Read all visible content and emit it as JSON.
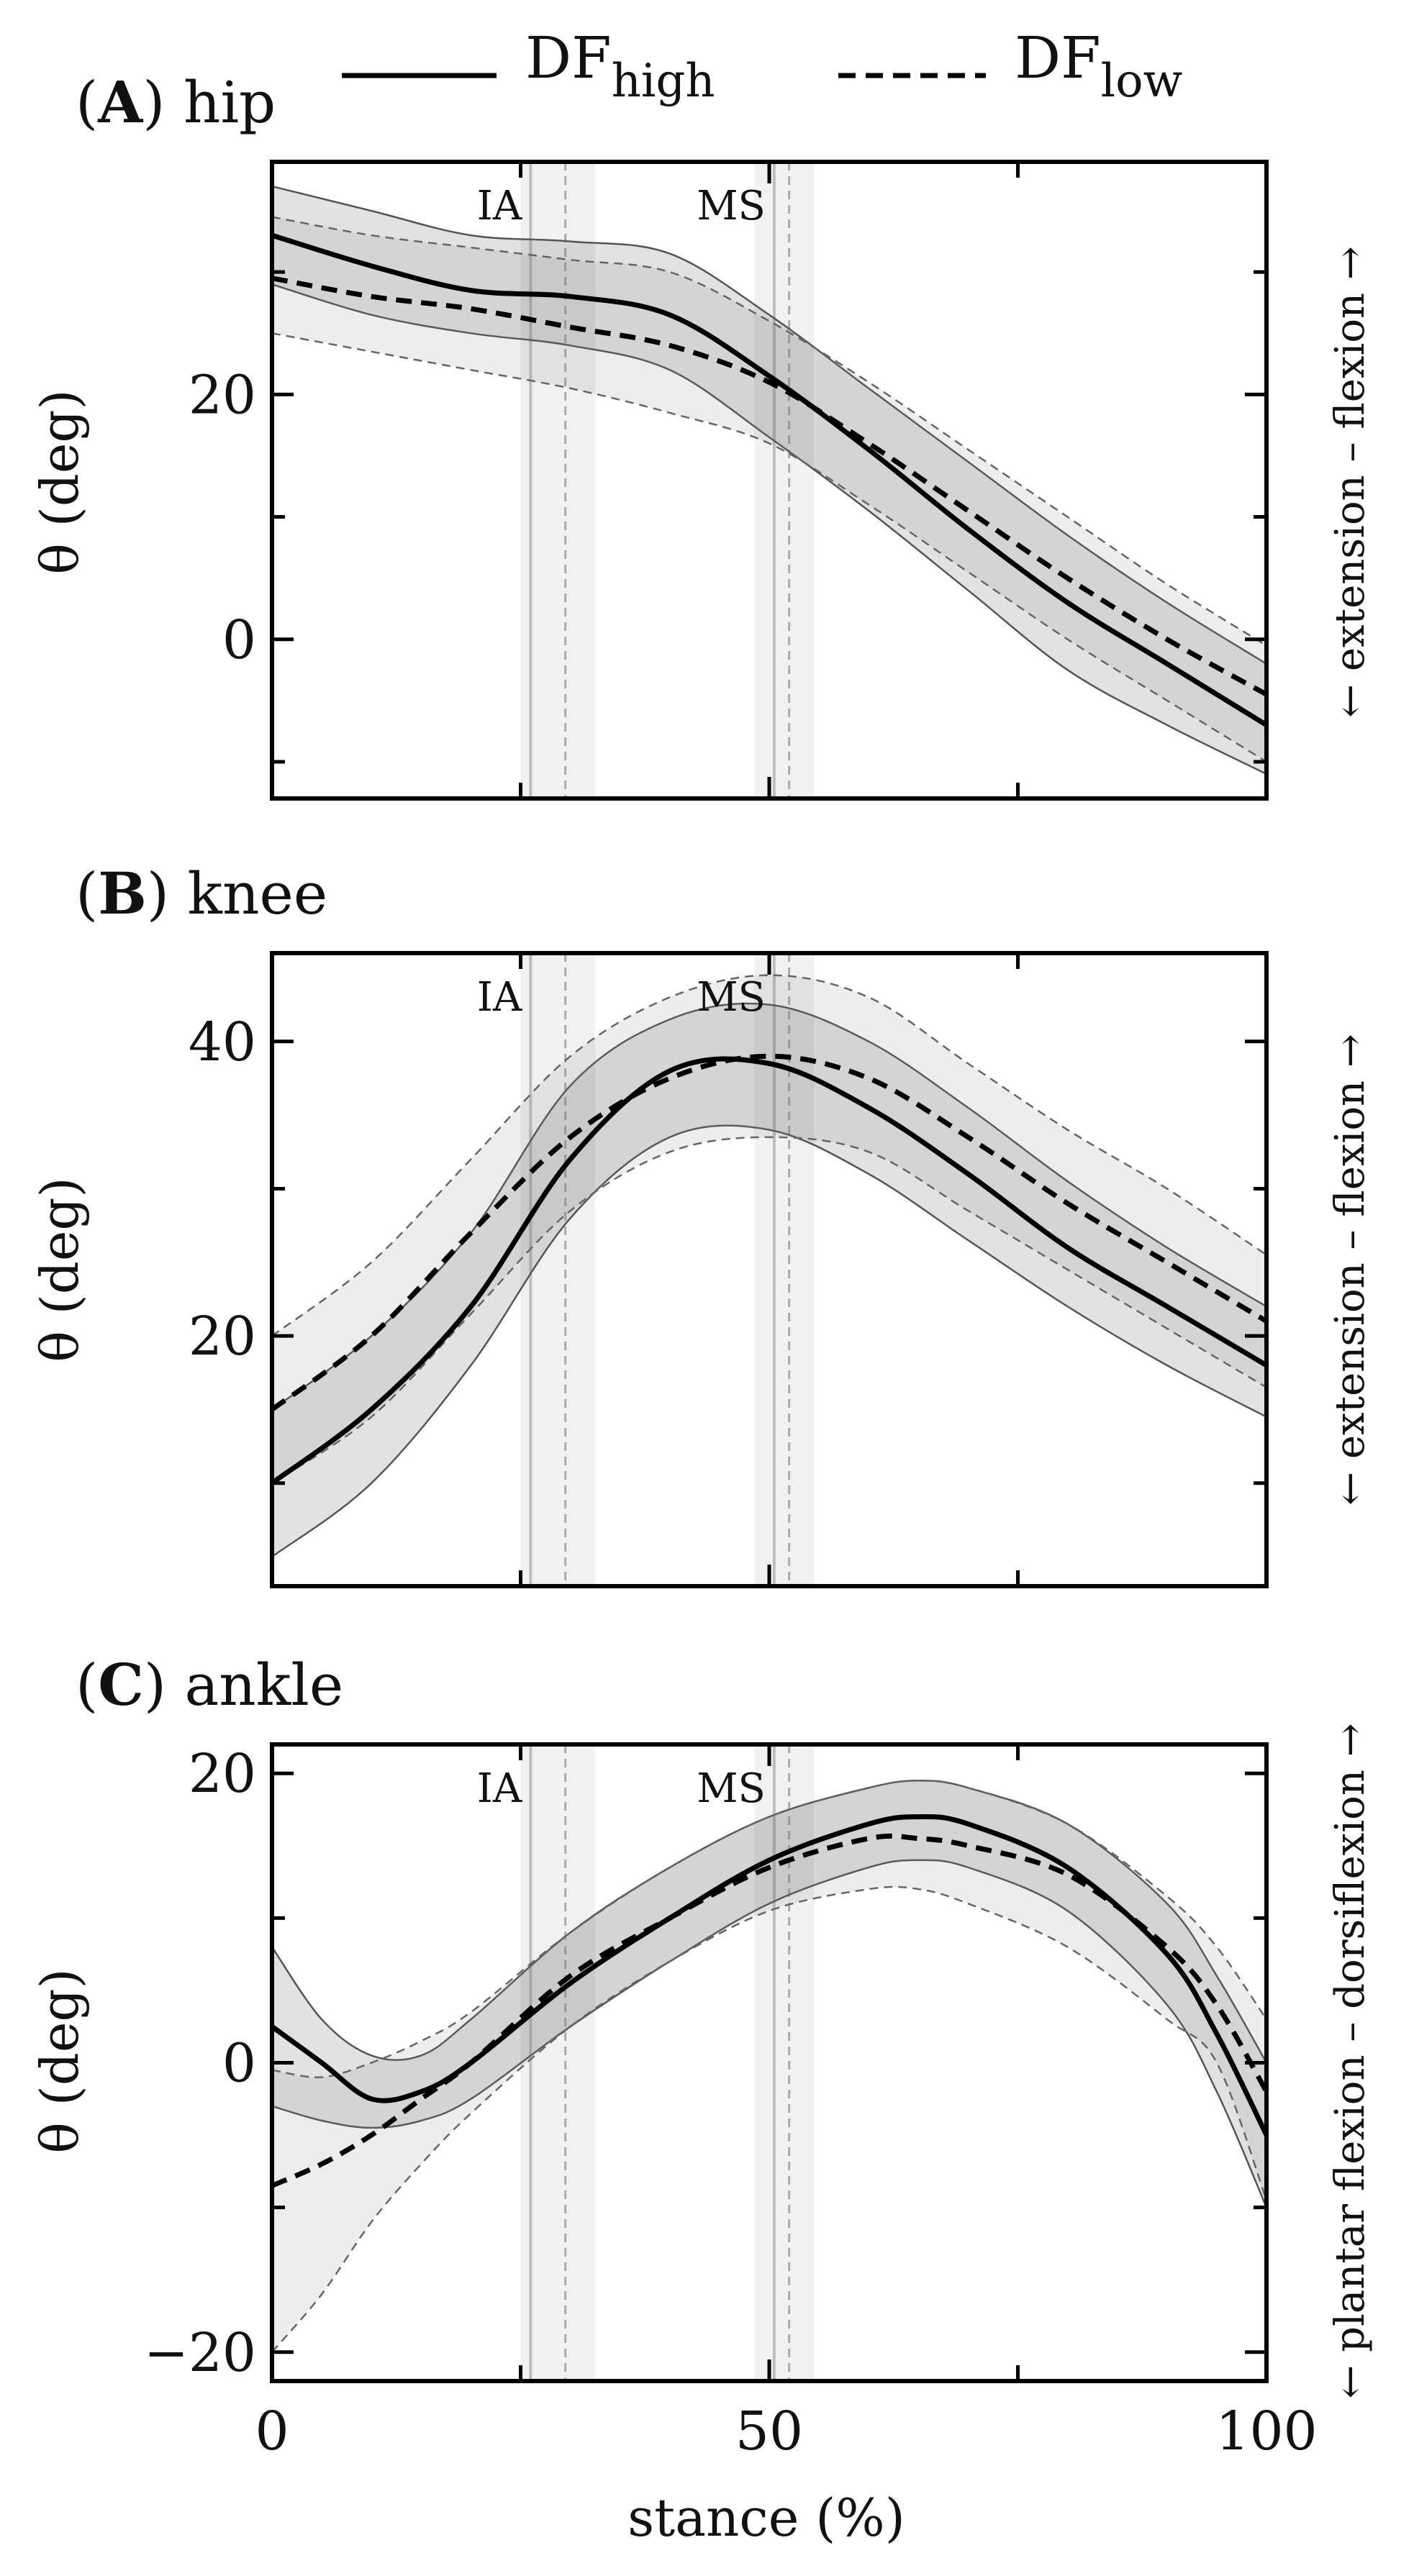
{
  "chart_data": {
    "type": "line",
    "legend": {
      "position": "top",
      "entries": [
        {
          "label": "DF",
          "subscript": "high",
          "style": "solid"
        },
        {
          "label": "DF",
          "subscript": "low",
          "style": "dashed"
        }
      ]
    },
    "xlabel": "stance (%)",
    "xlim": [
      0,
      100
    ],
    "xticks": [
      0,
      50,
      100
    ],
    "shared_x": true,
    "event_markers": [
      {
        "label": "IA",
        "df_high_x": 26.0,
        "df_low_x": 29.5,
        "band": [
          25.0,
          32.5
        ]
      },
      {
        "label": "MS",
        "df_high_x": 50.5,
        "df_low_x": 52.0,
        "band": [
          48.5,
          54.5
        ]
      }
    ],
    "panels": [
      {
        "id": "A",
        "title_letter": "A",
        "title_text": "hip",
        "ylabel": "θ (deg)",
        "side_label": "← extension – flexion →",
        "ylim": [
          -13,
          39
        ],
        "yticks": [
          0,
          20
        ],
        "series": [
          {
            "name": "DF_high",
            "x": [
              0,
              10,
              20,
              30,
              40,
              50,
              60,
              70,
              80,
              90,
              100
            ],
            "mean": [
              33,
              30.5,
              28.5,
              28,
              26.5,
              21.5,
              15.5,
              9,
              3,
              -2,
              -7
            ],
            "upper": [
              37,
              35,
              33,
              32.5,
              31.5,
              26.5,
              20.5,
              14.5,
              8.5,
              3,
              -2
            ],
            "lower": [
              29,
              26.5,
              25,
              24,
              22,
              16.5,
              10.5,
              4,
              -2.5,
              -7,
              -11
            ]
          },
          {
            "name": "DF_low",
            "x": [
              0,
              10,
              20,
              30,
              40,
              50,
              60,
              70,
              80,
              90,
              100
            ],
            "mean": [
              29.5,
              28,
              27,
              25.5,
              24,
              21,
              16,
              10.5,
              5,
              0,
              -4.5
            ],
            "upper": [
              34.5,
              33,
              32,
              31,
              30,
              26,
              21,
              15.5,
              10,
              4.5,
              -0.5
            ],
            "lower": [
              25,
              23.5,
              22,
              20.5,
              18.5,
              16,
              11,
              5.5,
              0,
              -5,
              -10
            ]
          }
        ]
      },
      {
        "id": "B",
        "title_letter": "B",
        "title_text": "knee",
        "ylabel": "θ (deg)",
        "side_label": "← extension – flexion →",
        "ylim": [
          3,
          46
        ],
        "yticks": [
          20,
          40
        ],
        "series": [
          {
            "name": "DF_high",
            "x": [
              0,
              10,
              20,
              30,
              40,
              50,
              60,
              70,
              80,
              90,
              100
            ],
            "mean": [
              10,
              15,
              22,
              32,
              38,
              38.5,
              35.5,
              31,
              26,
              22,
              18
            ],
            "upper": [
              15,
              20,
              27,
              37,
              41.5,
              42.5,
              40,
              35.5,
              30.5,
              26,
              22
            ],
            "lower": [
              5,
              10,
              18,
              28,
              33.5,
              34,
              31,
              26.5,
              22,
              18,
              14.5
            ]
          },
          {
            "name": "DF_low",
            "x": [
              0,
              10,
              20,
              30,
              40,
              50,
              60,
              70,
              80,
              90,
              100
            ],
            "mean": [
              15,
              20,
              27,
              33.5,
              37.5,
              39,
              37.5,
              33.5,
              29,
              25,
              21
            ],
            "upper": [
              20,
              25,
              32,
              39,
              43,
              44.5,
              43,
              38.5,
              34,
              30,
              25.5
            ],
            "lower": [
              10,
              14.5,
              21.5,
              28.5,
              32.5,
              33.5,
              32.5,
              28.5,
              24.5,
              20.5,
              16.5
            ]
          }
        ]
      },
      {
        "id": "C",
        "title_letter": "C",
        "title_text": "ankle",
        "ylabel": "θ (deg)",
        "side_label": "← plantar flexion – dorsiflexion →",
        "ylim": [
          -22,
          22
        ],
        "yticks": [
          -20,
          0,
          20
        ],
        "series": [
          {
            "name": "DF_high",
            "x": [
              0,
              5,
              10,
              15,
              20,
              30,
              40,
              50,
              60,
              65,
              70,
              80,
              90,
              95,
              100
            ],
            "mean": [
              2.5,
              0,
              -2.5,
              -2,
              0,
              5.5,
              10,
              14,
              16.5,
              17,
              16.5,
              13.5,
              7.5,
              2,
              -5
            ],
            "upper": [
              8,
              3,
              0.5,
              0.5,
              3,
              9,
              13.5,
              17,
              19,
              19.5,
              19,
              16.5,
              11,
              6,
              0
            ],
            "lower": [
              -3,
              -4,
              -4.5,
              -4,
              -2.5,
              2.5,
              7,
              11,
              13.5,
              14,
              13.5,
              10.5,
              4,
              -2,
              -10
            ]
          },
          {
            "name": "DF_low",
            "x": [
              0,
              5,
              10,
              15,
              20,
              30,
              40,
              50,
              60,
              65,
              70,
              80,
              90,
              95,
              100
            ],
            "mean": [
              -8.5,
              -7,
              -5,
              -2.5,
              0,
              6,
              10,
              13.5,
              15.5,
              15.5,
              15,
              13,
              8,
              4,
              -2
            ],
            "upper": [
              -0.5,
              -1,
              0,
              1.5,
              3.5,
              9,
              13.5,
              17,
              19,
              19.5,
              19,
              16.5,
              11.5,
              8,
              3
            ],
            "lower": [
              -20,
              -16,
              -11,
              -7,
              -3.5,
              2.5,
              7,
              10.5,
              12,
              12,
              11,
              8,
              3,
              0,
              -9.5
            ]
          }
        ]
      }
    ]
  }
}
